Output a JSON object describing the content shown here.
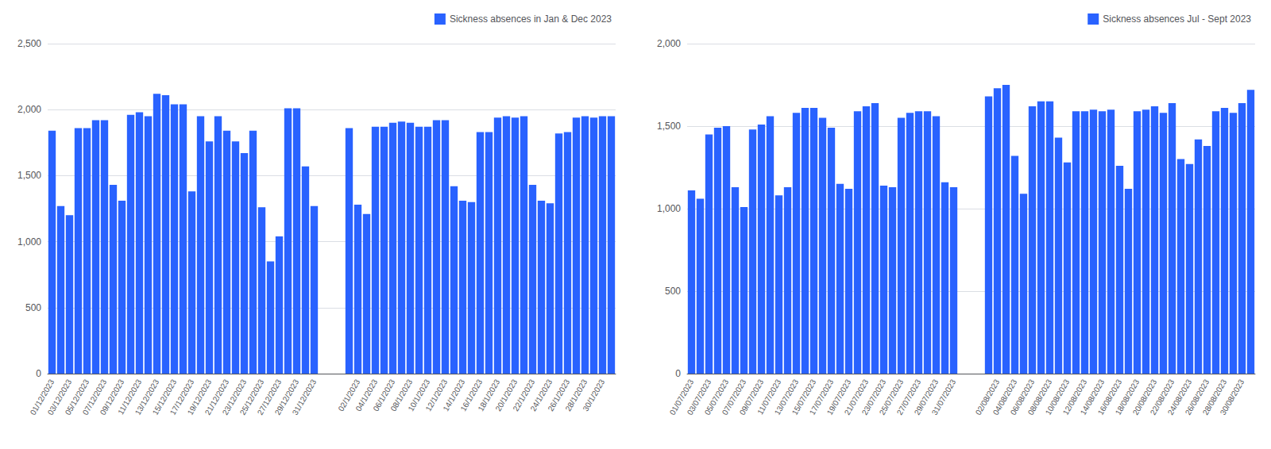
{
  "chart_data": [
    {
      "type": "bar",
      "categories": [
        "01/12/2023",
        null,
        "03/12/2023",
        null,
        "05/12/2023",
        null,
        "07/12/2023",
        null,
        "09/12/2023",
        null,
        "11/12/2023",
        null,
        "13/12/2023",
        null,
        "15/12/2023",
        null,
        "17/12/2023",
        null,
        "19/12/2023",
        null,
        "21/12/2023",
        null,
        "23/12/2023",
        null,
        "25/12/2023",
        null,
        "27/12/2023",
        null,
        "29/12/2023",
        null,
        "31/12/2023",
        null,
        null,
        null,
        null,
        "02/1/2023",
        null,
        "04/1/2023",
        null,
        "06/1/2023",
        null,
        "08/1/2023",
        null,
        "10/1/2023",
        null,
        "12/1/2023",
        null,
        "14/1/2023",
        null,
        "16/1/2023",
        null,
        "18/1/2023",
        null,
        "20/1/2023",
        null,
        "22/1/2023",
        null,
        "24/1/2023",
        null,
        "26/1/2023",
        null,
        "28/1/2023",
        null,
        "30/1/2023",
        null
      ],
      "series": [
        {
          "name": "Sickness absences in Jan & Dec 2023",
          "color": "#2962FF",
          "values": [
            1840,
            1270,
            1200,
            1860,
            1860,
            1920,
            1920,
            1430,
            1310,
            1960,
            1980,
            1950,
            2120,
            2110,
            2040,
            2040,
            1380,
            1950,
            1760,
            1950,
            1840,
            1760,
            1670,
            1840,
            1260,
            850,
            1040,
            2010,
            2010,
            1570,
            1270,
            null,
            null,
            null,
            1860,
            1280,
            1210,
            1870,
            1870,
            1900,
            1910,
            1900,
            1870,
            1870,
            1920,
            1920,
            1420,
            1310,
            1300,
            1830,
            1830,
            1940,
            1950,
            1940,
            1950,
            1430,
            1310,
            1290,
            1820,
            1830,
            1940,
            1950,
            1940,
            1950,
            1950
          ]
        }
      ],
      "ylim": [
        0,
        2500
      ],
      "yticks": [
        0,
        500,
        {
          "value": 1000,
          "label": "1,000"
        },
        {
          "value": 1500,
          "label": "1,500"
        },
        {
          "value": 2000,
          "label": "2,000"
        },
        {
          "value": 2500,
          "label": "2,500"
        }
      ],
      "grid": true,
      "legend": "upper right"
    },
    {
      "type": "bar",
      "categories": [
        "01/07/2023",
        null,
        "03/07/2023",
        null,
        "05/07/2023",
        null,
        "07/07/2023",
        null,
        "09/07/2023",
        null,
        "11/07/2023",
        null,
        "13/07/2023",
        null,
        "15/07/2023",
        null,
        "17/07/2023",
        null,
        "19/07/2023",
        null,
        "21/07/2023",
        null,
        "23/07/2023",
        null,
        "25/07/2023",
        null,
        "27/07/2023",
        null,
        "29/07/2023",
        null,
        "31/07/2023",
        null,
        null,
        null,
        null,
        "02/08/2023",
        null,
        "04/08/2023",
        null,
        "06/08/2023",
        null,
        "08/08/2023",
        null,
        "10/08/2023",
        null,
        "12/08/2023",
        null,
        "14/08/2023",
        null,
        "16/08/2023",
        null,
        "18/08/2023",
        null,
        "20/08/2023",
        null,
        "22/08/2023",
        null,
        "24/08/2023",
        null,
        "26/08/2023",
        null,
        "28/08/2023",
        null,
        "30/08/2023",
        null
      ],
      "series": [
        {
          "name": "Sickness absences Jul - Sept 2023",
          "color": "#2962FF",
          "values": [
            1110,
            1060,
            1450,
            1490,
            1500,
            1130,
            1010,
            1480,
            1510,
            1560,
            1080,
            1130,
            1580,
            1610,
            1610,
            1550,
            1490,
            1150,
            1120,
            1590,
            1620,
            1640,
            1140,
            1130,
            1550,
            1580,
            1590,
            1590,
            1560,
            1160,
            1130,
            null,
            null,
            null,
            1680,
            1730,
            1750,
            1320,
            1090,
            1620,
            1650,
            1650,
            1430,
            1280,
            1590,
            1590,
            1600,
            1590,
            1600,
            1260,
            1120,
            1590,
            1600,
            1620,
            1580,
            1640,
            1300,
            1270,
            1420,
            1380,
            1590,
            1610,
            1580,
            1640,
            1720
          ]
        }
      ],
      "ylim": [
        0,
        2000
      ],
      "yticks": [
        0,
        500,
        {
          "value": 1000,
          "label": "1,000"
        },
        {
          "value": 1500,
          "label": "1,500"
        },
        {
          "value": 2000,
          "label": "2,000"
        }
      ],
      "grid": true,
      "legend": "upper right"
    }
  ]
}
